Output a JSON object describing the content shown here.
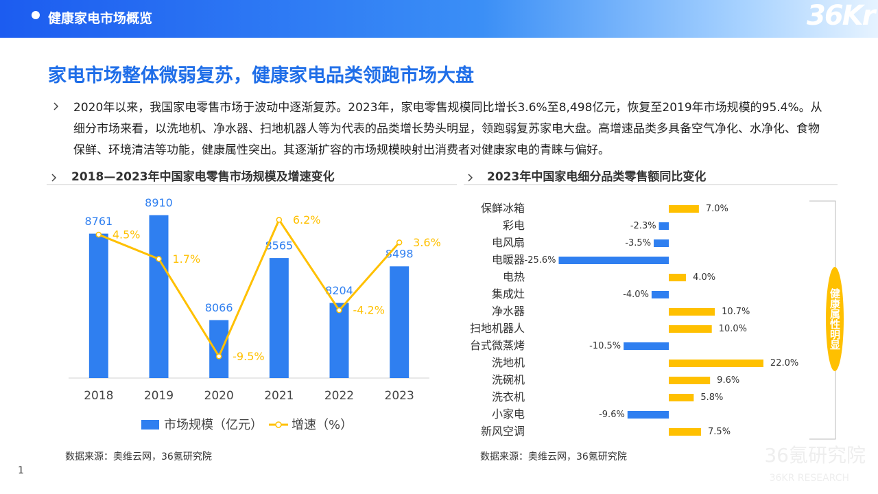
{
  "header": {
    "title": "健康家电市场概览",
    "logo": "36Kr"
  },
  "title": "家电市场整体微弱复苏，健康家电品类领跑市场大盘",
  "body": "2020年以来，我国家电零售市场于波动中逐渐复苏。2023年，家电零售规模同比增长3.6%至8,498亿元，恢复至2019年市场规模的95.4%。从细分市场来看，以洗地机、净水器、扫地机器人等为代表的品类增长势头明显，领跑弱复苏家电大盘。高增速品类多具备空气净化、水净化、食物保鲜、环境清洁等功能，健康属性突出。其逐渐扩容的市场规模映射出消费者对健康家电的青睐与偏好。",
  "chart_data": [
    {
      "type": "combo",
      "title": "2018—2023年中国家电零售市场规模及增速变化",
      "categories": [
        "2018",
        "2019",
        "2020",
        "2021",
        "2022",
        "2023"
      ],
      "series": [
        {
          "name": "市场规模（亿元）",
          "type": "bar",
          "color": "#2f7ff0",
          "values": [
            8761,
            8910,
            8066,
            8565,
            8204,
            8498
          ]
        },
        {
          "name": "增速（%）",
          "type": "line",
          "axis": "y2",
          "color": "#ffc000",
          "values": [
            4.5,
            1.7,
            -9.5,
            6.2,
            -4.2,
            3.6
          ],
          "value_labels": [
            "4.5%",
            "1.7%",
            "-9.5%",
            "6.2%",
            "-4.2%",
            "3.6%"
          ]
        }
      ],
      "ylim": [
        7600,
        9040
      ],
      "y2lim": [
        -12,
        8.6
      ],
      "legend": "bottom",
      "source": "数据来源：奥维云网，36氪研究院"
    },
    {
      "type": "bar",
      "horizontal": true,
      "title": "2023年中国家电细分品类零售额同比变化",
      "categories": [
        "保鲜冰箱",
        "彩电",
        "电风扇",
        "电暖器",
        "电热",
        "集成灶",
        "净水器",
        "扫地机器人",
        "台式微蒸烤",
        "洗地机",
        "洗碗机",
        "洗衣机",
        "小家电",
        "新风空调"
      ],
      "values": [
        7.0,
        -2.3,
        -3.5,
        -25.6,
        4.0,
        -4.0,
        10.7,
        10.0,
        -10.5,
        22.0,
        9.6,
        5.8,
        -9.6,
        7.5
      ],
      "value_labels": [
        "7.0%",
        "-2.3%",
        "-3.5%",
        "-25.6%",
        "4.0%",
        "-4.0%",
        "10.7%",
        "10.0%",
        "-10.5%",
        "22.0%",
        "9.6%",
        "5.8%",
        "-9.6%",
        "7.5%"
      ],
      "positive_color": "#ffc000",
      "negative_color": "#2f7ff0",
      "xlim": [
        -26,
        26
      ],
      "annotation": "健康属性明显",
      "source": "数据来源：奥维云网，36氪研究院"
    }
  ],
  "page_number": "1",
  "watermark": {
    "cn": "36氪研究院",
    "en": "36KR  RESEARCH"
  }
}
